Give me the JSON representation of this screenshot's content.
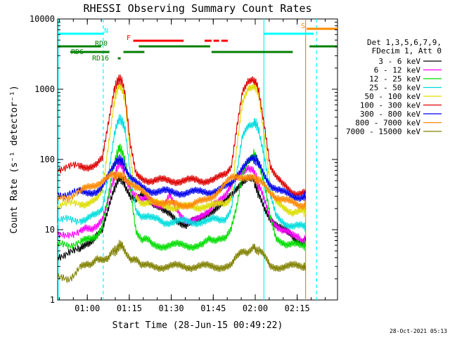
{
  "window": {
    "footer_timestamp": "28-Oct-2021 05:13"
  },
  "chart_data": {
    "type": "line",
    "title": "RHESSI Observing Summary Count Rates",
    "xlabel": "Start Time (28-Jun-15 00:49:22)",
    "ylabel": "Count Rate (s⁻¹ detector⁻¹)",
    "yscale": "log",
    "ylim": [
      1,
      10000
    ],
    "xlim_minutes": [
      0,
      100
    ],
    "x_ticks": [
      {
        "label": "01:00",
        "minutes": 10.6
      },
      {
        "label": "01:15",
        "minutes": 25.6
      },
      {
        "label": "01:30",
        "minutes": 40.6
      },
      {
        "label": "01:45",
        "minutes": 55.6
      },
      {
        "label": "02:00",
        "minutes": 70.6
      },
      {
        "label": "02:15",
        "minutes": 85.6
      }
    ],
    "y_ticks": [
      {
        "label": "1",
        "value": 1
      },
      {
        "label": "10",
        "value": 10
      },
      {
        "label": "100",
        "value": 100
      },
      {
        "label": "1000",
        "value": 1000
      },
      {
        "label": "10000",
        "value": 10000
      }
    ],
    "legend": {
      "placement": "right",
      "header": [
        "Det 1,3,5,6,7,9,",
        "FDecim 1, Att 0"
      ],
      "entries": [
        {
          "label": "3 - 6 keV",
          "color": "#000000"
        },
        {
          "label": "6 - 12 keV",
          "color": "#ff00ff"
        },
        {
          "label": "12 - 25 keV",
          "color": "#00dd00"
        },
        {
          "label": "25 - 50 keV",
          "color": "#00dddd"
        },
        {
          "label": "50 - 100 keV",
          "color": "#dddd00"
        },
        {
          "label": "100 - 300 keV",
          "color": "#dd0000"
        },
        {
          "label": "300 - 800 keV",
          "color": "#0000ee"
        },
        {
          "label": "800 - 7000 keV",
          "color": "#ff8800"
        },
        {
          "label": "7000 - 15000 keV",
          "color": "#808000"
        }
      ]
    },
    "flag_bars": [
      {
        "name": "N",
        "label": "N",
        "color": "#00ffff",
        "segments": [
          [
            0,
            16.5
          ],
          [
            73.5,
            91.5
          ]
        ]
      },
      {
        "name": "S",
        "label": "S",
        "color": "#ff8800",
        "segments": [
          [
            89,
            100
          ]
        ]
      },
      {
        "name": "F",
        "label": "F",
        "color": "#ff0000",
        "segments": [
          [
            27,
            45
          ],
          [
            52.5,
            55
          ],
          [
            55.7,
            57.7
          ],
          [
            58.5,
            60.8
          ]
        ]
      },
      {
        "name": "RD0",
        "label": "RD0",
        "color": "#008000",
        "segments": [
          [
            0,
            15.5
          ],
          [
            29,
            54.5
          ],
          [
            90,
            100
          ]
        ]
      },
      {
        "name": "RD6",
        "label": "RD6",
        "color": "#008000",
        "segments": [
          [
            4.5,
            18.5
          ],
          [
            23.5,
            31
          ],
          [
            55,
            84
          ]
        ]
      },
      {
        "name": "RD16",
        "label": "RD16",
        "color": "#008000",
        "segments": [
          [
            21.5,
            22.5
          ]
        ]
      }
    ],
    "vertical_markers": [
      {
        "name": "sunlight-start",
        "minutes": 0.2,
        "color": "#00ffff",
        "style": "solid"
      },
      {
        "name": "saa-dashed-1",
        "minutes": 16.3,
        "color": "#00ffff",
        "style": "dashed"
      },
      {
        "name": "night-start",
        "minutes": 73.7,
        "color": "#00ffff",
        "style": "solid"
      },
      {
        "name": "attenuator-orange",
        "minutes": 88.6,
        "color": "#ff8800",
        "style": "solid"
      },
      {
        "name": "saa-dashed-2",
        "minutes": 92.5,
        "color": "#00ffff",
        "style": "dashed"
      }
    ],
    "x": [
      0,
      4,
      8,
      10,
      12,
      14,
      16,
      18,
      20,
      21,
      22,
      23,
      24,
      26,
      28,
      30,
      32,
      34,
      36,
      38,
      40,
      42,
      44,
      46,
      48,
      50,
      52,
      54,
      56,
      58,
      60,
      62,
      64,
      66,
      68,
      70,
      71,
      72,
      74,
      76,
      78,
      80,
      82,
      84,
      86,
      88,
      88.6
    ],
    "series": [
      {
        "name": "3 - 6 keV",
        "color": "#000000",
        "values": [
          4,
          5,
          5,
          6,
          7,
          9,
          10,
          18,
          35,
          45,
          55,
          52,
          45,
          30,
          25,
          30,
          28,
          25,
          22,
          18,
          16,
          14,
          13,
          12,
          13,
          13,
          15,
          18,
          20,
          22,
          25,
          30,
          40,
          50,
          55,
          50,
          40,
          30,
          20,
          15,
          12,
          10,
          9,
          8,
          7,
          7,
          7
        ]
      },
      {
        "name": "6 - 12 keV",
        "color": "#ff00ff",
        "values": [
          8,
          9,
          9,
          10,
          10,
          12,
          15,
          25,
          50,
          70,
          90,
          80,
          60,
          40,
          30,
          25,
          28,
          25,
          24,
          22,
          30,
          20,
          16,
          14,
          14,
          14,
          15,
          18,
          25,
          28,
          30,
          40,
          55,
          70,
          80,
          70,
          55,
          40,
          25,
          15,
          12,
          10,
          9,
          8,
          8,
          7,
          7
        ]
      },
      {
        "name": "12 - 25 keV",
        "color": "#00dd00",
        "values": [
          6,
          6,
          7,
          7,
          7,
          8,
          12,
          30,
          80,
          110,
          150,
          130,
          100,
          40,
          10,
          7,
          7,
          6,
          6,
          6,
          6,
          6,
          6,
          6,
          6,
          6,
          6,
          7,
          7,
          8,
          8,
          10,
          20,
          60,
          100,
          120,
          110,
          80,
          40,
          15,
          8,
          7,
          6,
          6,
          6,
          6,
          6
        ]
      },
      {
        "name": "25 - 50 keV",
        "color": "#00dddd",
        "values": [
          13,
          14,
          14,
          14,
          15,
          16,
          20,
          60,
          200,
          300,
          380,
          350,
          280,
          60,
          20,
          16,
          15,
          14,
          14,
          13,
          13,
          13,
          13,
          13,
          13,
          13,
          13,
          13,
          14,
          14,
          15,
          20,
          60,
          200,
          300,
          340,
          320,
          250,
          100,
          30,
          16,
          14,
          12,
          11,
          11,
          11,
          11
        ]
      },
      {
        "name": "50 - 100 keV",
        "color": "#dddd00",
        "values": [
          22,
          23,
          24,
          24,
          25,
          26,
          35,
          150,
          600,
          900,
          1150,
          1000,
          700,
          100,
          30,
          25,
          25,
          24,
          23,
          22,
          22,
          21,
          21,
          21,
          21,
          21,
          22,
          22,
          22,
          23,
          24,
          30,
          150,
          600,
          950,
          1100,
          1050,
          800,
          200,
          40,
          24,
          22,
          20,
          18,
          18,
          18,
          18
        ]
      },
      {
        "name": "100 - 300 keV",
        "color": "#dd0000",
        "values": [
          75,
          78,
          80,
          80,
          82,
          85,
          100,
          300,
          900,
          1200,
          1400,
          1300,
          900,
          150,
          60,
          55,
          52,
          50,
          50,
          50,
          50,
          50,
          50,
          50,
          50,
          50,
          50,
          52,
          52,
          55,
          60,
          80,
          300,
          900,
          1200,
          1300,
          1250,
          900,
          300,
          80,
          55,
          45,
          40,
          35,
          33,
          33,
          33
        ]
      },
      {
        "name": "300 - 800 keV",
        "color": "#0000ee",
        "values": [
          32,
          33,
          34,
          34,
          35,
          36,
          40,
          55,
          80,
          95,
          100,
          95,
          80,
          55,
          45,
          40,
          38,
          36,
          35,
          35,
          34,
          34,
          34,
          34,
          34,
          34,
          35,
          35,
          36,
          37,
          40,
          45,
          60,
          80,
          95,
          100,
          98,
          85,
          60,
          45,
          38,
          34,
          32,
          30,
          30,
          30,
          30
        ]
      },
      {
        "name": "800 - 7000 keV",
        "color": "#ff8800",
        "values": [
          28,
          30,
          34,
          38,
          42,
          46,
          50,
          55,
          58,
          59,
          60,
          58,
          55,
          48,
          40,
          34,
          30,
          27,
          25,
          24,
          23,
          23,
          23,
          23,
          23,
          24,
          25,
          28,
          32,
          38,
          45,
          52,
          56,
          58,
          58,
          55,
          52,
          48,
          42,
          35,
          30,
          27,
          25,
          24,
          23,
          23,
          23
        ]
      },
      {
        "name": "7000 - 15000 keV",
        "color": "#808000",
        "values": [
          2,
          2,
          3,
          3,
          3,
          4,
          4,
          4,
          5,
          5,
          6,
          6,
          5,
          4,
          4,
          3,
          3,
          3,
          3,
          3,
          3,
          3,
          3,
          3,
          3,
          3,
          3,
          3,
          3,
          3,
          3,
          3,
          4,
          5,
          5,
          6,
          5,
          5,
          4,
          3,
          3,
          3,
          3,
          3,
          3,
          3,
          3
        ]
      }
    ]
  }
}
